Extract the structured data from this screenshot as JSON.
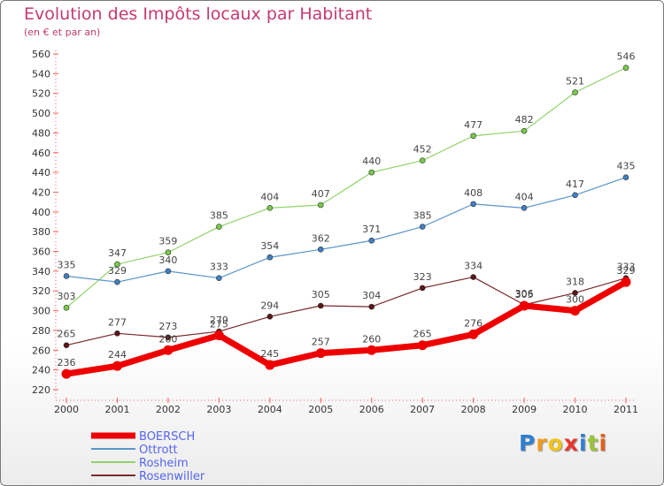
{
  "chart_data": {
    "type": "line",
    "title": "Evolution des Impôts locaux par Habitant",
    "subtitle": "(en € et par an)",
    "x": [
      "2000",
      "2001",
      "2002",
      "2003",
      "2004",
      "2005",
      "2006",
      "2007",
      "2008",
      "2009",
      "2010",
      "2011"
    ],
    "ylim": [
      220,
      560
    ],
    "yticks": [
      220,
      240,
      260,
      280,
      300,
      320,
      340,
      360,
      380,
      400,
      420,
      440,
      460,
      480,
      500,
      520,
      540,
      560
    ],
    "grid": false,
    "legend_position": "bottom-left",
    "series": [
      {
        "name": "Rosheim",
        "color": "#8fd46a",
        "dot": "#7ac94a",
        "width": 1.2,
        "values": [
          303,
          347,
          359,
          385,
          404,
          407,
          440,
          452,
          477,
          482,
          521,
          546
        ]
      },
      {
        "name": "Ottrott",
        "color": "#5b95c9",
        "dot": "#3f7fc1",
        "width": 1.2,
        "values": [
          335,
          329,
          340,
          333,
          354,
          362,
          371,
          385,
          408,
          404,
          417,
          435
        ]
      },
      {
        "name": "Rosenwiller",
        "color": "#7a2a2a",
        "dot": "#5c1515",
        "width": 1.2,
        "values": [
          265,
          277,
          273,
          279,
          294,
          305,
          304,
          323,
          334,
          306,
          318,
          333
        ]
      },
      {
        "name": "BOERSCH",
        "color": "#ee0000",
        "dot": "#ee0000",
        "width": 7,
        "values": [
          236,
          244,
          260,
          275,
          245,
          257,
          260,
          265,
          276,
          305,
          300,
          329
        ]
      }
    ],
    "legend_order": [
      "BOERSCH",
      "Ottrott",
      "Rosheim",
      "Rosenwiller"
    ]
  },
  "logo": {
    "letters": [
      "P",
      "r",
      "o",
      "x",
      "i",
      "t",
      "i"
    ],
    "colors": [
      "#2f7fd1",
      "#f39a1d",
      "#f2c41a",
      "#e8342d",
      "#2f7fd1",
      "#9ac43a",
      "#e2621b"
    ]
  }
}
